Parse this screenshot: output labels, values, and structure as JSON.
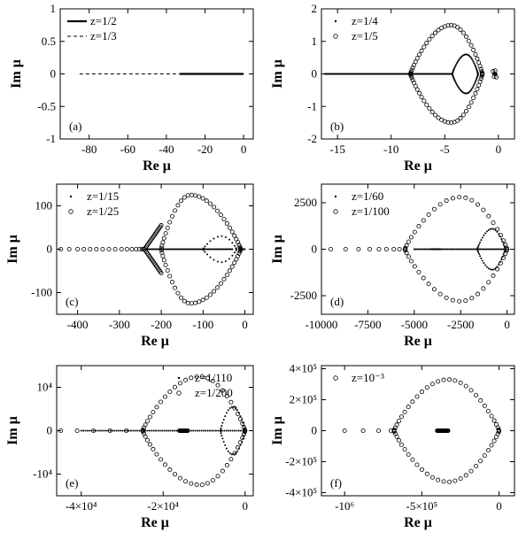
{
  "figure": {
    "layout": "3x2 grid of panels"
  },
  "chart_data": [
    {
      "id": "a",
      "type": "scatter",
      "panel_tag": "(a)",
      "xlabel": "Re μ",
      "ylabel": "Im μ",
      "xlim": [
        -95,
        5
      ],
      "ylim": [
        -1,
        1
      ],
      "xticks": [
        -80,
        -60,
        -40,
        -20,
        0
      ],
      "xtick_labels": [
        "-80",
        "-60",
        "-40",
        "-20",
        "0"
      ],
      "yticks": [
        -1,
        -0.5,
        0,
        0.5,
        1
      ],
      "ytick_labels": [
        "-1",
        "-0.5",
        "0",
        "0.5",
        "1"
      ],
      "legend_position": "top-left",
      "series": [
        {
          "name": "z=1/2",
          "style": "solid-line",
          "x": [
            -33,
            0
          ],
          "y": [
            0,
            0
          ]
        },
        {
          "name": "z=1/3",
          "style": "dashed-line",
          "x": [
            -85,
            0
          ],
          "y": [
            0,
            0
          ]
        }
      ]
    },
    {
      "id": "b",
      "type": "scatter",
      "panel_tag": "(b)",
      "xlabel": "Re μ",
      "ylabel": "Im μ",
      "xlim": [
        -16.5,
        1.5
      ],
      "ylim": [
        -2,
        2
      ],
      "xticks": [
        -15,
        -10,
        -5,
        0
      ],
      "xtick_labels": [
        "-15",
        "-10",
        "-5",
        "0"
      ],
      "yticks": [
        -2,
        -1,
        0,
        1,
        2
      ],
      "ytick_labels": [
        "-2",
        "-1",
        "0",
        "1",
        "2"
      ],
      "legend_position": "top-left",
      "series": [
        {
          "name": "z=1/4",
          "marker": "dot",
          "description": "dense points on real axis from -16.2 to -4.3; loop between -4.3 and -1.9 (max |Im| 0.6); cluster near -0.3"
        },
        {
          "name": "z=1/5",
          "marker": "circle",
          "description": "closed curve through Re=-8.2 and Re=-1.5, max |Im| 1.5 at Re=-4.4; small cluster near -0.3"
        }
      ]
    },
    {
      "id": "c",
      "type": "scatter",
      "panel_tag": "(c)",
      "xlabel": "Re μ",
      "ylabel": "Im μ",
      "xlim": [
        -450,
        20
      ],
      "ylim": [
        -150,
        150
      ],
      "xticks": [
        -400,
        -300,
        -200,
        -100,
        0
      ],
      "xtick_labels": [
        "-400",
        "-300",
        "-200",
        "-100",
        "0"
      ],
      "yticks": [
        -100,
        0,
        100
      ],
      "ytick_labels": [
        "-100",
        "0",
        "100"
      ],
      "legend_position": "top-left",
      "series": [
        {
          "name": "z=1/15",
          "marker": "dot",
          "description": "points on real axis from -235 to 0, loop near -100 to -20 with |Im| up to 30"
        },
        {
          "name": "z=1/25",
          "marker": "circle",
          "description": "points on real axis from -440 to -240, branching at -240 into a closed curve through Re=-10 with max |Im| 125 at Re=-130"
        }
      ]
    },
    {
      "id": "d",
      "type": "scatter",
      "panel_tag": "(d)",
      "xlabel": "Re μ",
      "ylabel": "Im μ",
      "xlim": [
        -10000,
        400
      ],
      "ylim": [
        -3500,
        3500
      ],
      "xticks": [
        -10000,
        -7500,
        -5000,
        -2500,
        0
      ],
      "xtick_labels": [
        "-10000",
        "-7500",
        "-5000",
        "-2500",
        "0"
      ],
      "yticks": [
        -2500,
        0,
        2500
      ],
      "ytick_labels": [
        "-2500",
        "0",
        "2500"
      ],
      "legend_position": "top-left",
      "series": [
        {
          "name": "z=1/60",
          "marker": "dot",
          "description": "points on real axis, dense cluster near -3800, heart-shaped loop between -1600 and -100 with |Im| up to 1100"
        },
        {
          "name": "z=1/100",
          "marker": "circle",
          "description": "sparse points on real axis to -9500, closed curve from -5500 to 0 with max |Im| 2800"
        }
      ]
    },
    {
      "id": "e",
      "type": "scatter",
      "panel_tag": "(e)",
      "xlabel": "Re μ",
      "ylabel": "Im μ",
      "xlim": [
        -46000,
        2000
      ],
      "ylim": [
        -15000,
        15000
      ],
      "xticks": [
        -40000,
        -20000,
        0
      ],
      "xtick_labels": [
        "-4×10⁴",
        "-2×10⁴",
        "0"
      ],
      "yticks": [
        -10000,
        0,
        10000
      ],
      "ytick_labels": [
        "-10⁴",
        "0",
        "10⁴"
      ],
      "legend_position": "top-right",
      "series": [
        {
          "name": "z=1/110",
          "marker": "dot",
          "description": "points on real axis from -40000 to 0, loop between -6000 and 0 with |Im| up to 5500"
        },
        {
          "name": "z=1/200",
          "marker": "circle",
          "description": "sparse points to -45000, cluster near -15000, closed curve from -25000 to 0 with max |Im| 12500"
        }
      ]
    },
    {
      "id": "f",
      "type": "scatter",
      "panel_tag": "(f)",
      "xlabel": "Re μ",
      "ylabel": "Im μ",
      "xlim": [
        -1150000,
        100000
      ],
      "ylim": [
        -420000,
        420000
      ],
      "xticks": [
        -1000000,
        -500000,
        0
      ],
      "xtick_labels": [
        "-10⁶",
        "-5×10⁵",
        "0"
      ],
      "yticks": [
        -400000,
        -200000,
        0,
        200000,
        400000
      ],
      "ytick_labels": [
        "-4×10⁵",
        "-2×10⁵",
        "0",
        "2×10⁵",
        "4×10⁵"
      ],
      "legend_position": "top-left",
      "series": [
        {
          "name": "z=10⁻³",
          "marker": "circle",
          "description": "sparse points on real axis to -1000000, dense cluster around -400000 to -330000, closed curve from -680000 to 0 with max |Im| 330000"
        }
      ]
    }
  ]
}
